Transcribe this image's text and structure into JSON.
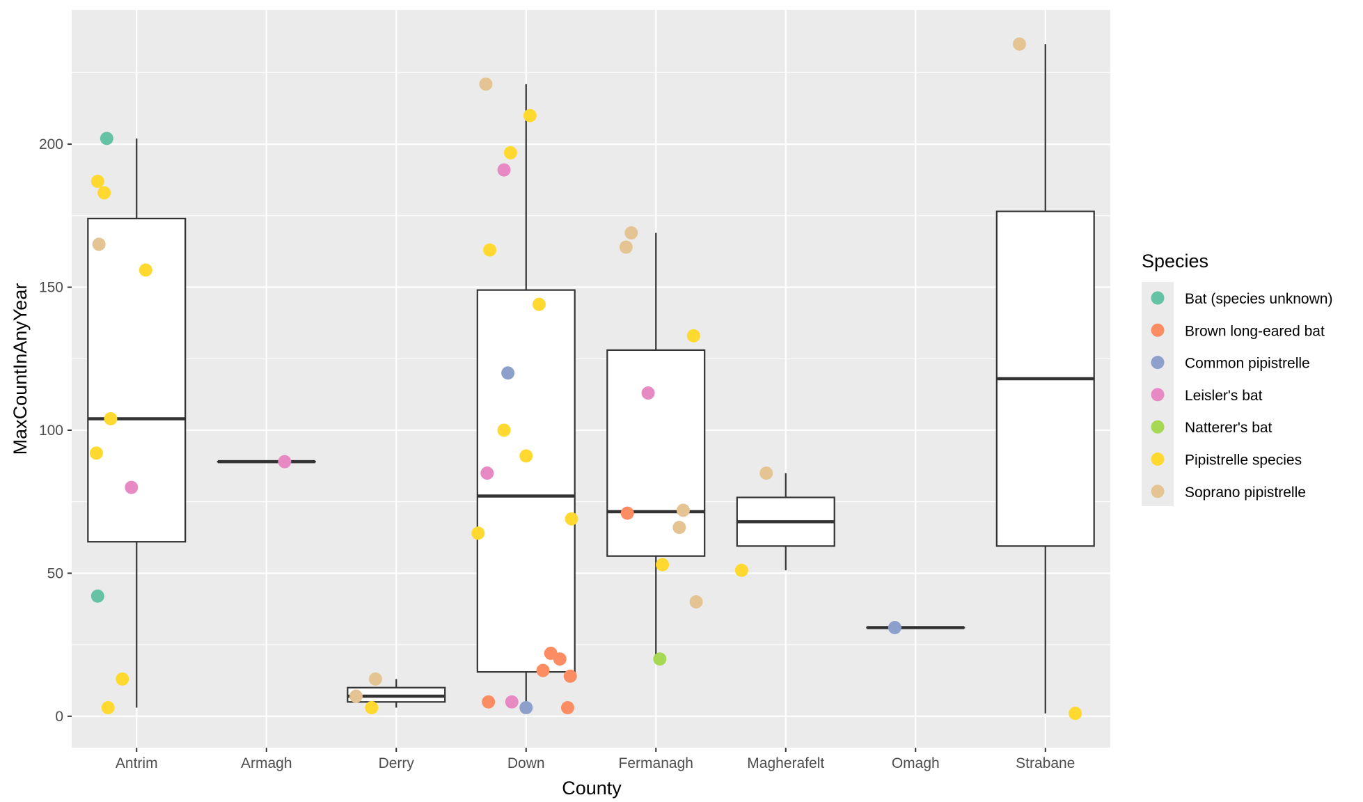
{
  "chart_data": {
    "type": "box",
    "xlabel": "County",
    "ylabel": "MaxCountInAnyYear",
    "ylim": [
      -11,
      247
    ],
    "yticks": [
      0,
      50,
      100,
      150,
      200
    ],
    "categories": [
      "Antrim",
      "Armagh",
      "Derry",
      "Down",
      "Fermanagh",
      "Magherafelt",
      "Omagh",
      "Strabane"
    ],
    "grid": true,
    "legend": {
      "title": "Species",
      "position": "right",
      "entries": [
        {
          "name": "Bat (species unknown)",
          "color": "#66C2A5"
        },
        {
          "name": "Brown long-eared bat",
          "color": "#FC8D62"
        },
        {
          "name": "Common pipistrelle",
          "color": "#8DA0CB"
        },
        {
          "name": "Leisler's bat",
          "color": "#E78AC3"
        },
        {
          "name": "Natterer's bat",
          "color": "#A6D854"
        },
        {
          "name": "Pipistrelle species",
          "color": "#FFD92F"
        },
        {
          "name": "Soprano pipistrelle",
          "color": "#E5C494"
        }
      ]
    },
    "boxes": [
      {
        "county": "Antrim",
        "min": 3,
        "q1": 61,
        "median": 104,
        "q3": 174,
        "max": 202
      },
      {
        "county": "Armagh",
        "min": 89,
        "q1": 89,
        "median": 89,
        "q3": 89,
        "max": 89
      },
      {
        "county": "Derry",
        "min": 3,
        "q1": 5,
        "median": 7,
        "q3": 10,
        "max": 13
      },
      {
        "county": "Down",
        "min": 3,
        "q1": 15.5,
        "median": 77,
        "q3": 149,
        "max": 221
      },
      {
        "county": "Fermanagh",
        "min": 20,
        "q1": 56,
        "median": 71.5,
        "q3": 128,
        "max": 169
      },
      {
        "county": "Magherafelt",
        "min": 51,
        "q1": 59.5,
        "median": 68,
        "q3": 76.5,
        "max": 85
      },
      {
        "county": "Omagh",
        "min": 31,
        "q1": 31,
        "median": 31,
        "q3": 31,
        "max": 31
      },
      {
        "county": "Strabane",
        "min": 1,
        "q1": 59.5,
        "median": 118,
        "q3": 176.5,
        "max": 235
      }
    ],
    "points": [
      {
        "county": "Antrim",
        "species": "Bat (species unknown)",
        "value": 202,
        "jitter": -0.23
      },
      {
        "county": "Antrim",
        "species": "Pipistrelle species",
        "value": 187,
        "jitter": -0.3
      },
      {
        "county": "Antrim",
        "species": "Pipistrelle species",
        "value": 183,
        "jitter": -0.25
      },
      {
        "county": "Antrim",
        "species": "Soprano pipistrelle",
        "value": 165,
        "jitter": -0.29
      },
      {
        "county": "Antrim",
        "species": "Pipistrelle species",
        "value": 156,
        "jitter": 0.07
      },
      {
        "county": "Antrim",
        "species": "Pipistrelle species",
        "value": 104,
        "jitter": -0.2
      },
      {
        "county": "Antrim",
        "species": "Pipistrelle species",
        "value": 92,
        "jitter": -0.31
      },
      {
        "county": "Antrim",
        "species": "Leisler's bat",
        "value": 80,
        "jitter": -0.04
      },
      {
        "county": "Antrim",
        "species": "Bat (species unknown)",
        "value": 42,
        "jitter": -0.3
      },
      {
        "county": "Antrim",
        "species": "Pipistrelle species",
        "value": 13,
        "jitter": -0.11
      },
      {
        "county": "Antrim",
        "species": "Pipistrelle species",
        "value": 3,
        "jitter": -0.22
      },
      {
        "county": "Armagh",
        "species": "Leisler's bat",
        "value": 89,
        "jitter": 0.14
      },
      {
        "county": "Derry",
        "species": "Soprano pipistrelle",
        "value": 13,
        "jitter": -0.16
      },
      {
        "county": "Derry",
        "species": "Soprano pipistrelle",
        "value": 7,
        "jitter": -0.31
      },
      {
        "county": "Derry",
        "species": "Pipistrelle species",
        "value": 3,
        "jitter": -0.19
      },
      {
        "county": "Down",
        "species": "Soprano pipistrelle",
        "value": 221,
        "jitter": -0.31
      },
      {
        "county": "Down",
        "species": "Pipistrelle species",
        "value": 210,
        "jitter": 0.03
      },
      {
        "county": "Down",
        "species": "Pipistrelle species",
        "value": 197,
        "jitter": -0.12
      },
      {
        "county": "Down",
        "species": "Leisler's bat",
        "value": 191,
        "jitter": -0.17
      },
      {
        "county": "Down",
        "species": "Pipistrelle species",
        "value": 163,
        "jitter": -0.28
      },
      {
        "county": "Down",
        "species": "Pipistrelle species",
        "value": 144,
        "jitter": 0.1
      },
      {
        "county": "Down",
        "species": "Common pipistrelle",
        "value": 120,
        "jitter": -0.14
      },
      {
        "county": "Down",
        "species": "Pipistrelle species",
        "value": 100,
        "jitter": -0.17
      },
      {
        "county": "Down",
        "species": "Pipistrelle species",
        "value": 91,
        "jitter": 0.0
      },
      {
        "county": "Down",
        "species": "Leisler's bat",
        "value": 85,
        "jitter": -0.3
      },
      {
        "county": "Down",
        "species": "Pipistrelle species",
        "value": 69,
        "jitter": 0.35
      },
      {
        "county": "Down",
        "species": "Pipistrelle species",
        "value": 64,
        "jitter": -0.37
      },
      {
        "county": "Down",
        "species": "Brown long-eared bat",
        "value": 22,
        "jitter": 0.19
      },
      {
        "county": "Down",
        "species": "Brown long-eared bat",
        "value": 20,
        "jitter": 0.26
      },
      {
        "county": "Down",
        "species": "Brown long-eared bat",
        "value": 16,
        "jitter": 0.13
      },
      {
        "county": "Down",
        "species": "Brown long-eared bat",
        "value": 14,
        "jitter": 0.34
      },
      {
        "county": "Down",
        "species": "Brown long-eared bat",
        "value": 5,
        "jitter": -0.29
      },
      {
        "county": "Down",
        "species": "Leisler's bat",
        "value": 5,
        "jitter": -0.11
      },
      {
        "county": "Down",
        "species": "Common pipistrelle",
        "value": 3,
        "jitter": 0.0
      },
      {
        "county": "Down",
        "species": "Brown long-eared bat",
        "value": 3,
        "jitter": 0.32
      },
      {
        "county": "Fermanagh",
        "species": "Soprano pipistrelle",
        "value": 169,
        "jitter": -0.19
      },
      {
        "county": "Fermanagh",
        "species": "Soprano pipistrelle",
        "value": 164,
        "jitter": -0.23
      },
      {
        "county": "Fermanagh",
        "species": "Pipistrelle species",
        "value": 133,
        "jitter": 0.29
      },
      {
        "county": "Fermanagh",
        "species": "Leisler's bat",
        "value": 113,
        "jitter": -0.06
      },
      {
        "county": "Fermanagh",
        "species": "Soprano pipistrelle",
        "value": 72,
        "jitter": 0.21
      },
      {
        "county": "Fermanagh",
        "species": "Brown long-eared bat",
        "value": 71,
        "jitter": -0.22
      },
      {
        "county": "Fermanagh",
        "species": "Soprano pipistrelle",
        "value": 66,
        "jitter": 0.18
      },
      {
        "county": "Fermanagh",
        "species": "Pipistrelle species",
        "value": 53,
        "jitter": 0.05
      },
      {
        "county": "Fermanagh",
        "species": "Soprano pipistrelle",
        "value": 40,
        "jitter": 0.31
      },
      {
        "county": "Fermanagh",
        "species": "Natterer's bat",
        "value": 20,
        "jitter": 0.03
      },
      {
        "county": "Magherafelt",
        "species": "Soprano pipistrelle",
        "value": 85,
        "jitter": -0.15
      },
      {
        "county": "Magherafelt",
        "species": "Pipistrelle species",
        "value": 51,
        "jitter": -0.34
      },
      {
        "county": "Omagh",
        "species": "Common pipistrelle",
        "value": 31,
        "jitter": -0.16
      },
      {
        "county": "Strabane",
        "species": "Soprano pipistrelle",
        "value": 235,
        "jitter": -0.2
      },
      {
        "county": "Strabane",
        "species": "Pipistrelle species",
        "value": 1,
        "jitter": 0.23
      }
    ]
  }
}
